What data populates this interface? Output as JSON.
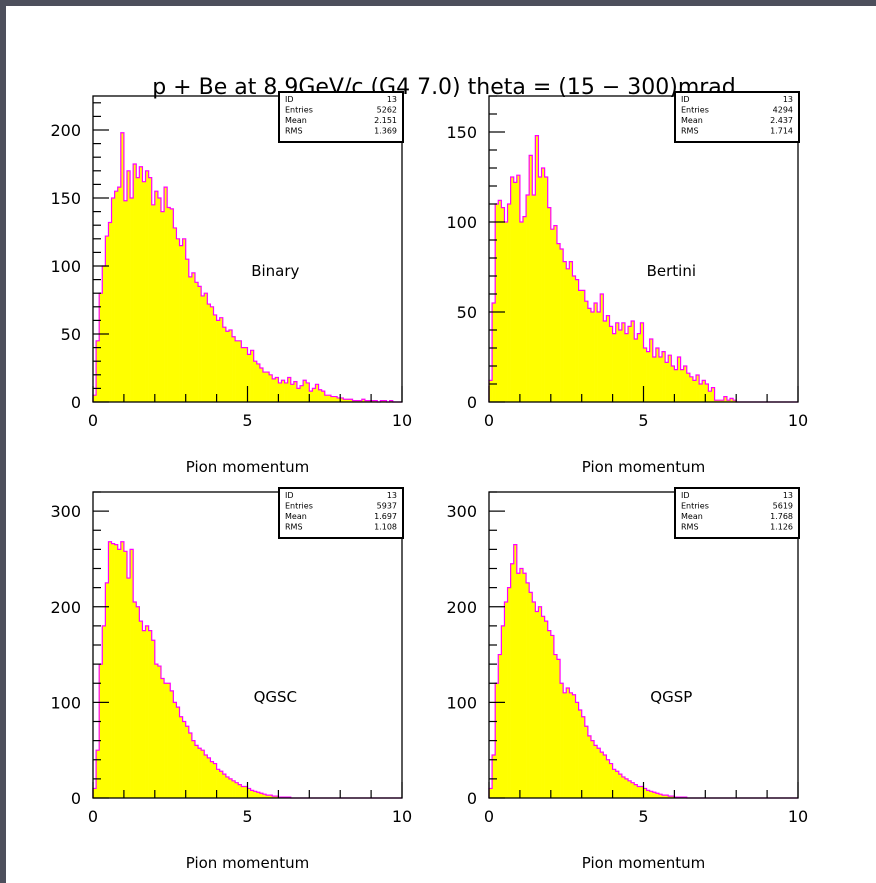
{
  "figure": {
    "title": "p + Be at 8.9GeV/c (G4 7.0) theta = (15 − 300)mrad"
  },
  "colors": {
    "fill": "#ffff00",
    "line": "#ff00ff",
    "frame": "#000000"
  },
  "chart_data": [
    {
      "type": "bar",
      "model_label": "Binary",
      "xlabel": "Pion momentum",
      "xlim": [
        0,
        10
      ],
      "ylim": [
        0,
        225
      ],
      "xticks": [
        0,
        5,
        10
      ],
      "yticks": [
        0,
        50,
        100,
        150,
        200
      ],
      "stats": {
        "id_label": "ID",
        "id": "13",
        "entries_label": "Entries",
        "entries": "5262",
        "mean_label": "Mean",
        "mean": "2.151",
        "rms_label": "RMS",
        "rms": "1.369"
      },
      "bin_width": 0.1,
      "values": [
        5,
        45,
        80,
        100,
        122,
        132,
        150,
        155,
        158,
        198,
        148,
        170,
        150,
        175,
        165,
        173,
        162,
        170,
        165,
        145,
        155,
        150,
        140,
        158,
        143,
        142,
        128,
        120,
        115,
        120,
        105,
        92,
        95,
        88,
        85,
        78,
        80,
        72,
        70,
        64,
        60,
        62,
        55,
        52,
        53,
        48,
        45,
        45,
        40,
        40,
        35,
        38,
        30,
        28,
        25,
        22,
        22,
        20,
        17,
        18,
        14,
        16,
        14,
        18,
        13,
        15,
        10,
        12,
        16,
        14,
        8,
        10,
        13,
        9,
        8,
        5,
        5,
        4,
        4,
        3,
        3,
        2,
        2,
        2,
        1,
        1,
        1,
        2,
        1,
        1,
        1,
        1,
        0,
        1,
        1,
        0,
        1,
        0,
        0,
        0
      ]
    },
    {
      "type": "bar",
      "model_label": "Bertini",
      "xlabel": "Pion momentum",
      "xlim": [
        0,
        10
      ],
      "ylim": [
        0,
        170
      ],
      "xticks": [
        0,
        5,
        10
      ],
      "yticks": [
        0,
        50,
        100,
        150
      ],
      "stats": {
        "id_label": "ID",
        "id": "13",
        "entries_label": "Entries",
        "entries": "4294",
        "mean_label": "Mean",
        "mean": "2.437",
        "rms_label": "RMS",
        "rms": "1.714"
      },
      "bin_width": 0.1,
      "values": [
        12,
        55,
        110,
        112,
        108,
        100,
        110,
        125,
        122,
        126,
        100,
        103,
        115,
        137,
        115,
        148,
        125,
        130,
        125,
        108,
        96,
        98,
        88,
        85,
        78,
        74,
        78,
        70,
        68,
        62,
        62,
        56,
        52,
        50,
        55,
        50,
        60,
        45,
        48,
        42,
        38,
        44,
        40,
        44,
        38,
        42,
        45,
        35,
        38,
        44,
        30,
        28,
        35,
        25,
        30,
        25,
        28,
        22,
        26,
        20,
        18,
        25,
        18,
        20,
        16,
        14,
        12,
        15,
        10,
        12,
        10,
        6,
        8,
        1,
        1,
        1,
        3,
        1,
        2,
        1,
        0,
        0,
        0,
        0,
        0,
        0,
        0,
        0,
        0,
        0,
        0,
        0,
        0,
        0,
        0,
        0,
        0,
        0,
        0,
        0
      ]
    },
    {
      "type": "bar",
      "model_label": "QGSC",
      "xlabel": "Pion momentum",
      "xlim": [
        0,
        10
      ],
      "ylim": [
        0,
        320
      ],
      "xticks": [
        0,
        5,
        10
      ],
      "yticks": [
        0,
        100,
        200,
        300
      ],
      "stats": {
        "id_label": "ID",
        "id": "13",
        "entries_label": "Entries",
        "entries": "5937",
        "mean_label": "Mean",
        "mean": "1.697",
        "rms_label": "RMS",
        "rms": "1.108"
      },
      "bin_width": 0.1,
      "values": [
        10,
        50,
        140,
        180,
        225,
        268,
        266,
        265,
        260,
        268,
        258,
        230,
        260,
        205,
        200,
        185,
        175,
        180,
        175,
        165,
        140,
        138,
        125,
        120,
        120,
        112,
        100,
        95,
        85,
        80,
        75,
        68,
        60,
        55,
        52,
        50,
        45,
        42,
        38,
        36,
        30,
        28,
        25,
        22,
        20,
        18,
        16,
        14,
        12,
        12,
        10,
        8,
        7,
        6,
        5,
        4,
        3,
        3,
        2,
        2,
        1,
        1,
        1,
        1,
        0,
        0,
        0,
        0,
        0,
        0,
        0,
        0,
        0,
        0,
        0,
        0,
        0,
        0,
        0,
        0,
        0,
        0,
        0,
        0,
        0,
        0,
        0,
        0,
        0,
        0,
        0,
        0,
        0,
        0,
        0,
        0,
        0,
        0,
        0,
        0
      ]
    },
    {
      "type": "bar",
      "model_label": "QGSP",
      "xlabel": "Pion momentum",
      "xlim": [
        0,
        10
      ],
      "ylim": [
        0,
        320
      ],
      "xticks": [
        0,
        5,
        10
      ],
      "yticks": [
        0,
        100,
        200,
        300
      ],
      "stats": {
        "id_label": "ID",
        "id": "13",
        "entries_label": "Entries",
        "entries": "5619",
        "mean_label": "Mean",
        "mean": "1.768",
        "rms_label": "RMS",
        "rms": "1.126"
      },
      "bin_width": 0.1,
      "values": [
        10,
        45,
        120,
        150,
        180,
        205,
        220,
        245,
        265,
        235,
        240,
        235,
        225,
        215,
        205,
        195,
        200,
        190,
        185,
        175,
        170,
        150,
        145,
        120,
        110,
        115,
        110,
        108,
        100,
        92,
        85,
        75,
        65,
        60,
        55,
        52,
        48,
        45,
        40,
        36,
        30,
        28,
        25,
        22,
        20,
        18,
        16,
        14,
        12,
        12,
        10,
        8,
        7,
        6,
        5,
        4,
        3,
        3,
        2,
        2,
        1,
        1,
        1,
        1,
        0,
        0,
        0,
        0,
        0,
        0,
        0,
        0,
        0,
        0,
        0,
        0,
        0,
        0,
        0,
        0,
        0,
        0,
        0,
        0,
        0,
        0,
        0,
        0,
        0,
        0,
        0,
        0,
        0,
        0,
        0,
        0,
        0,
        0,
        0,
        0
      ]
    }
  ]
}
